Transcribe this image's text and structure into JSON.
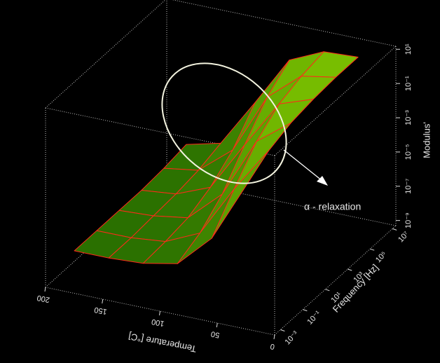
{
  "chart_data": {
    "type": "surface3d",
    "x_label": "Temperature [°C]",
    "y_label": "Frequency [Hz]",
    "z_label": "Modulus'",
    "annotation": "α - relaxation",
    "xlim": [
      0,
      200
    ],
    "xticks": [
      200,
      150,
      100,
      50,
      0
    ],
    "ylim": [
      0.0003,
      20000000
    ],
    "y_log_scale": true,
    "yticks": [
      {
        "value": 0.001,
        "label": "10⁻³"
      },
      {
        "value": 0.1,
        "label": "10⁻¹"
      },
      {
        "value": 10,
        "label": "10¹"
      },
      {
        "value": 1000,
        "label": "10³"
      },
      {
        "value": 100000,
        "label": "10⁵"
      },
      {
        "value": 10000000,
        "label": "10⁷"
      }
    ],
    "zlim": [
      5e-10,
      15
    ],
    "z_log_scale": true,
    "zticks": [
      {
        "value": 10,
        "label": "10¹"
      },
      {
        "value": 0.1,
        "label": "10⁻¹"
      },
      {
        "value": 0.001,
        "label": "10⁻³"
      },
      {
        "value": 1e-05,
        "label": "10⁻⁵"
      },
      {
        "value": 1e-07,
        "label": "10⁻⁷"
      },
      {
        "value": 1e-09,
        "label": "10⁻⁹"
      }
    ],
    "temperatures": [
      30,
      60,
      90,
      120,
      150,
      180
    ],
    "frequencies": [
      0.001,
      0.1,
      10,
      1000,
      100000,
      10000000
    ],
    "z": [
      [
        0.05,
        1.6e-05,
        2e-07,
        8e-08,
        6.3e-08,
        6.3e-08
      ],
      [
        0.35,
        0.0008,
        8e-07,
        1e-07,
        6.3e-08,
        6.3e-08
      ],
      [
        1,
        0.032,
        1e-05,
        1.6e-07,
        8e-08,
        6.3e-08
      ],
      [
        1.6,
        0.32,
        0.0005,
        6.3e-07,
        1e-07,
        6.3e-08
      ],
      [
        2,
        0.9,
        0.02,
        6.3e-06,
        1.6e-07,
        8e-08
      ],
      [
        2,
        1.6,
        0.2,
        0.00025,
        4e-07,
        1.3e-07
      ]
    ],
    "surface_color": "#2a8a00",
    "mesh_color": "#ff2a1a"
  }
}
